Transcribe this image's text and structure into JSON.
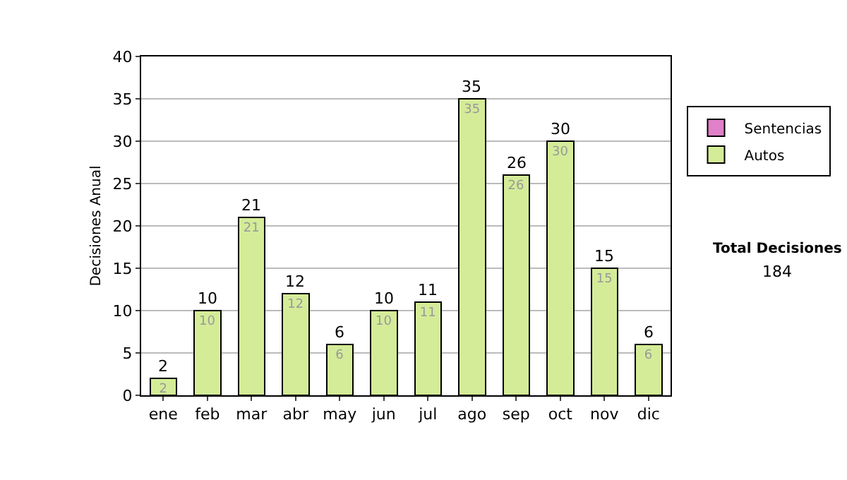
{
  "chart_data": {
    "type": "bar",
    "stacked": true,
    "ylabel": "Decisiones Anual",
    "categories": [
      "ene",
      "feb",
      "mar",
      "abr",
      "may",
      "jun",
      "jul",
      "ago",
      "sep",
      "oct",
      "nov",
      "dic"
    ],
    "series": [
      {
        "name": "Sentencias",
        "color": "#e080c8",
        "values": [
          0,
          0,
          0,
          0,
          0,
          0,
          0,
          0,
          0,
          0,
          0,
          0
        ]
      },
      {
        "name": "Autos",
        "color": "#d4ec98",
        "values": [
          2,
          10,
          21,
          12,
          6,
          10,
          11,
          35,
          26,
          30,
          15,
          6
        ],
        "value_labels": [
          "2",
          "10",
          "21",
          "12",
          "6",
          "10",
          "11",
          "35",
          "26",
          "30",
          "15",
          "6"
        ]
      }
    ],
    "totals": [
      "2",
      "10",
      "21",
      "12",
      "6",
      "10",
      "11",
      "35",
      "26",
      "30",
      "15",
      "6"
    ],
    "ylim": [
      0,
      40
    ],
    "yticks": [
      0,
      5,
      10,
      15,
      20,
      25,
      30,
      35,
      40
    ],
    "grid": "y",
    "legend": "right",
    "annotations": [
      "Total Decisiones",
      "184"
    ]
  }
}
